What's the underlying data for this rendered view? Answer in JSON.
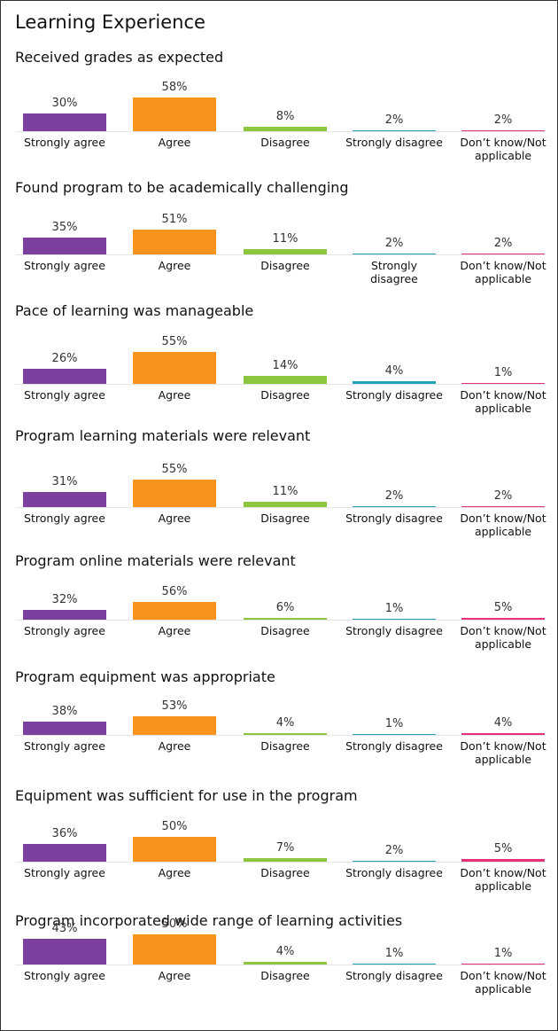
{
  "title": "Learning Experience",
  "chart_data": [
    {
      "type": "bar",
      "title": "Received grades as expected",
      "categories": [
        "Strongly agree",
        "Agree",
        "Disagree",
        "Strongly disagree",
        "Don’t know/Not applicable"
      ],
      "values": [
        30,
        58,
        8,
        2,
        2
      ],
      "value_labels": [
        "30%",
        "58%",
        "8%",
        "2%",
        "2%"
      ],
      "colors": [
        "#7b3f9e",
        "#f7941d",
        "#8cc63f",
        "#1fa2b4",
        "#e5307b"
      ]
    },
    {
      "type": "bar",
      "title": "Found program to be academically challenging",
      "categories": [
        "Strongly agree",
        "Agree",
        "Disagree",
        "Strongly disagree",
        "Don’t know/Not applicable"
      ],
      "values": [
        35,
        51,
        11,
        2,
        2
      ],
      "value_labels": [
        "35%",
        "51%",
        "11%",
        "2%",
        "2%"
      ],
      "colors": [
        "#7b3f9e",
        "#f7941d",
        "#8cc63f",
        "#1fa2b4",
        "#e5307b"
      ]
    },
    {
      "type": "bar",
      "title": "Pace of learning was manageable",
      "categories": [
        "Strongly agree",
        "Agree",
        "Disagree",
        "Strongly disagree",
        "Don’t know/Not applicable"
      ],
      "values": [
        26,
        55,
        14,
        4,
        1
      ],
      "value_labels": [
        "26%",
        "55%",
        "14%",
        "4%",
        "1%"
      ],
      "colors": [
        "#7b3f9e",
        "#f7941d",
        "#8cc63f",
        "#1fa2b4",
        "#e5307b"
      ]
    },
    {
      "type": "bar",
      "title": "Program learning materials were relevant",
      "categories": [
        "Strongly agree",
        "Agree",
        "Disagree",
        "Strongly disagree",
        "Don’t know/Not applicable"
      ],
      "values": [
        31,
        55,
        11,
        2,
        2
      ],
      "value_labels": [
        "31%",
        "55%",
        "11%",
        "2%",
        "2%"
      ],
      "colors": [
        "#7b3f9e",
        "#f7941d",
        "#8cc63f",
        "#1fa2b4",
        "#e5307b"
      ]
    },
    {
      "type": "bar",
      "title": "Program online materials were relevant",
      "categories": [
        "Strongly agree",
        "Agree",
        "Disagree",
        "Strongly disagree",
        "Don’t know/Not applicable"
      ],
      "values": [
        32,
        56,
        6,
        1,
        5
      ],
      "value_labels": [
        "32%",
        "56%",
        "6%",
        "1%",
        "5%"
      ],
      "colors": [
        "#7b3f9e",
        "#f7941d",
        "#8cc63f",
        "#1fa2b4",
        "#e5307b"
      ]
    },
    {
      "type": "bar",
      "title": "Program equipment was appropriate",
      "categories": [
        "Strongly agree",
        "Agree",
        "Disagree",
        "Strongly disagree",
        "Don’t know/Not applicable"
      ],
      "values": [
        38,
        53,
        4,
        1,
        4
      ],
      "value_labels": [
        "38%",
        "53%",
        "4%",
        "1%",
        "4%"
      ],
      "colors": [
        "#7b3f9e",
        "#f7941d",
        "#8cc63f",
        "#1fa2b4",
        "#e5307b"
      ]
    },
    {
      "type": "bar",
      "title": "Equipment was sufficient for use in the program",
      "categories": [
        "Strongly agree",
        "Agree",
        "Disagree",
        "Strongly disagree",
        "Don’t know/Not applicable"
      ],
      "values": [
        36,
        50,
        7,
        2,
        5
      ],
      "value_labels": [
        "36%",
        "50%",
        "7%",
        "2%",
        "5%"
      ],
      "colors": [
        "#7b3f9e",
        "#f7941d",
        "#8cc63f",
        "#1fa2b4",
        "#e5307b"
      ]
    },
    {
      "type": "bar",
      "title": "Program incorporated wide range of learning activities",
      "categories": [
        "Strongly agree",
        "Agree",
        "Disagree",
        "Strongly disagree",
        "Don’t know/Not applicable"
      ],
      "values": [
        43,
        50,
        4,
        1,
        1
      ],
      "value_labels": [
        "43%",
        "50%",
        "4%",
        "1%",
        "1%"
      ],
      "colors": [
        "#7b3f9e",
        "#f7941d",
        "#8cc63f",
        "#1fa2b4",
        "#e5307b"
      ]
    }
  ]
}
